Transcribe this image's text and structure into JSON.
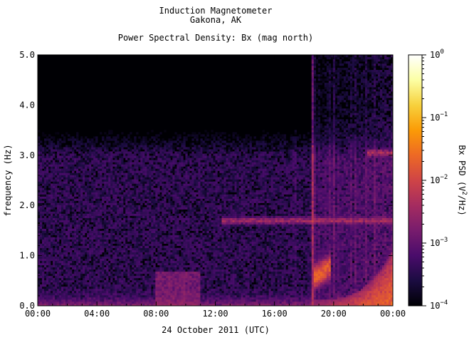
{
  "chart_data": {
    "type": "heatmap",
    "title": "Induction Magnetometer",
    "subtitle": "Gakona, AK",
    "plot_title": "Power Spectral Density: Bx (mag north)",
    "xlabel": "24 October 2011 (UTC)",
    "ylabel": "frequency (Hz)",
    "x_ticks": [
      "00:00",
      "04:00",
      "08:00",
      "12:00",
      "16:00",
      "20:00",
      "00:00"
    ],
    "y_ticks": [
      "0.0",
      "1.0",
      "2.0",
      "3.0",
      "4.0",
      "5.0"
    ],
    "xlim_hours": [
      0,
      24
    ],
    "ylim": [
      0,
      5.0
    ],
    "colorbar": {
      "label_main": "Bx PSD (V",
      "label_sup": "2",
      "label_end": "/Hz)",
      "scale": "log",
      "range": [
        0.0001,
        1
      ],
      "ticks": [
        {
          "base": "10",
          "exp": "0",
          "value": 1
        },
        {
          "base": "10",
          "exp": "−1",
          "value": 0.1
        },
        {
          "base": "10",
          "exp": "−2",
          "value": 0.01
        },
        {
          "base": "10",
          "exp": "−3",
          "value": 0.001
        },
        {
          "base": "10",
          "exp": "−4",
          "value": 0.0001
        }
      ],
      "colormap": [
        "#000004",
        "#1b0c41",
        "#4a0c6b",
        "#781c6d",
        "#a52c60",
        "#cf4446",
        "#ed6925",
        "#fb9b06",
        "#f7d13d",
        "#fcffa4",
        "#ffffff"
      ]
    },
    "features": {
      "background_level": 0.0003,
      "low_freq_enhancement_hz": [
        0.0,
        0.3
      ],
      "pc1_bands": [
        {
          "freq_hz": 1.7,
          "start_h": 12.5,
          "end_h": 24.0,
          "level": 0.004
        },
        {
          "freq_hz": 3.05,
          "start_h": 22.3,
          "end_h": 24.0,
          "level": 0.005
        }
      ],
      "broadband_onset_h": 18.6,
      "burst_start_h": 18.6,
      "burst_peak_freq_hz": 0.55
    }
  }
}
